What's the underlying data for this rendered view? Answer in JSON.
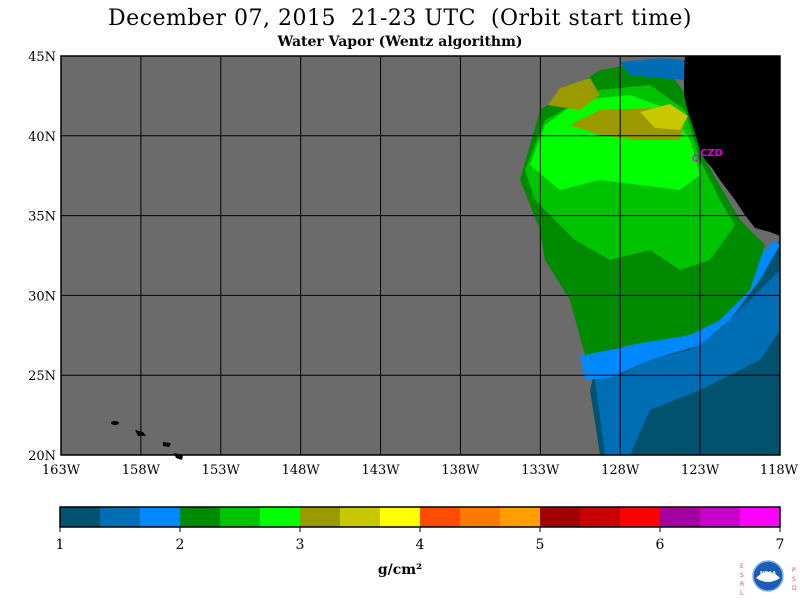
{
  "header": {
    "title": "December 07, 2015  21-23 UTC  (Orbit start time)",
    "subtitle": "Water Vapor (Wentz algorithm)"
  },
  "map": {
    "lat_labels": [
      "45N",
      "40N",
      "35N",
      "30N",
      "25N",
      "20N"
    ],
    "lon_labels": [
      "163W",
      "158W",
      "153W",
      "148W",
      "143W",
      "138W",
      "133W",
      "128W",
      "123W",
      "118W"
    ],
    "lat_range": [
      20,
      45
    ],
    "lon_range": [
      -163,
      -118
    ],
    "station_label": "CZD",
    "colors": {
      "no_data": "#6b6b6b",
      "land": "#000000",
      "grid": "#000000",
      "station": "#e000e0"
    }
  },
  "colorbar": {
    "tick_labels": [
      "1",
      "2",
      "3",
      "4",
      "5",
      "6",
      "7"
    ],
    "units": "g/cm²",
    "colors": [
      "#00526e",
      "#006eb4",
      "#0088ff",
      "#008a00",
      "#00c300",
      "#00ff00",
      "#9a9a00",
      "#c8c800",
      "#ffff00",
      "#ff4c00",
      "#ff7a00",
      "#ffa000",
      "#a00000",
      "#c80000",
      "#ff0000",
      "#a000a0",
      "#c800c8",
      "#ff00ff"
    ]
  },
  "logo": {
    "left_letters": "ESRL",
    "right_letters": "PSD",
    "center_text": "NOAA"
  }
}
